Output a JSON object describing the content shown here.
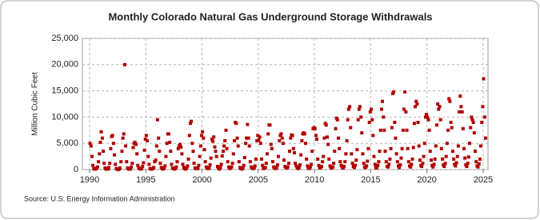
{
  "chart_data": {
    "type": "scatter",
    "title": "Monthly Colorado Natural  Gas Underground Storage Withdrawals",
    "ylabel": "Million Cubic Feet",
    "source": "Source: U.S. Energy Information Administration",
    "color": "#b00000",
    "grid": true,
    "xlim": [
      1989.36,
      2025.43
    ],
    "xticks": [
      1990,
      1995,
      2000,
      2005,
      2010,
      2015,
      2020,
      2025
    ],
    "ylim": [
      0,
      25000
    ],
    "yticks": [
      0,
      {
        "value": 5000,
        "label": "5,000"
      },
      {
        "value": 10000,
        "label": "10,000"
      },
      {
        "value": 15000,
        "label": "15,000"
      },
      {
        "value": 20000,
        "label": "20,000"
      },
      {
        "value": 25000,
        "label": "25,000"
      }
    ],
    "x": [
      1990.04,
      1990.13,
      1990.21,
      1990.29,
      1990.38,
      1990.46,
      1990.54,
      1990.63,
      1990.71,
      1990.79,
      1990.88,
      1990.96,
      1991.04,
      1991.13,
      1991.21,
      1991.29,
      1991.38,
      1991.46,
      1991.54,
      1991.63,
      1991.71,
      1991.79,
      1991.88,
      1991.96,
      1992.04,
      1992.13,
      1992.21,
      1992.29,
      1992.38,
      1992.46,
      1992.54,
      1992.63,
      1992.71,
      1992.79,
      1992.88,
      1992.96,
      1993.04,
      1993.13,
      1993.21,
      1993.29,
      1993.38,
      1993.46,
      1993.54,
      1993.63,
      1993.71,
      1993.79,
      1993.88,
      1993.96,
      1994.04,
      1994.13,
      1994.21,
      1994.29,
      1994.38,
      1994.46,
      1994.54,
      1994.63,
      1994.71,
      1994.79,
      1994.88,
      1994.96,
      1995.04,
      1995.13,
      1995.21,
      1995.29,
      1995.38,
      1995.46,
      1995.54,
      1995.63,
      1995.71,
      1995.79,
      1995.88,
      1995.96,
      1996.04,
      1996.13,
      1996.21,
      1996.29,
      1996.38,
      1996.46,
      1996.54,
      1996.63,
      1996.71,
      1996.79,
      1996.88,
      1996.96,
      1997.04,
      1997.13,
      1997.21,
      1997.29,
      1997.38,
      1997.46,
      1997.54,
      1997.63,
      1997.71,
      1997.79,
      1997.88,
      1997.96,
      1998.04,
      1998.13,
      1998.21,
      1998.29,
      1998.38,
      1998.46,
      1998.54,
      1998.63,
      1998.71,
      1998.79,
      1998.88,
      1998.96,
      1999.04,
      1999.13,
      1999.21,
      1999.29,
      1999.38,
      1999.46,
      1999.54,
      1999.63,
      1999.71,
      1999.79,
      1999.88,
      1999.96,
      2000.04,
      2000.13,
      2000.21,
      2000.29,
      2000.38,
      2000.46,
      2000.54,
      2000.63,
      2000.71,
      2000.79,
      2000.88,
      2000.96,
      2001.04,
      2001.13,
      2001.21,
      2001.29,
      2001.38,
      2001.46,
      2001.54,
      2001.63,
      2001.71,
      2001.79,
      2001.88,
      2001.96,
      2002.04,
      2002.13,
      2002.21,
      2002.29,
      2002.38,
      2002.46,
      2002.54,
      2002.63,
      2002.71,
      2002.79,
      2002.88,
      2002.96,
      2003.04,
      2003.13,
      2003.21,
      2003.29,
      2003.38,
      2003.46,
      2003.54,
      2003.63,
      2003.71,
      2003.79,
      2003.88,
      2003.96,
      2004.04,
      2004.13,
      2004.21,
      2004.29,
      2004.38,
      2004.46,
      2004.54,
      2004.63,
      2004.71,
      2004.79,
      2004.88,
      2004.96,
      2005.04,
      2005.13,
      2005.21,
      2005.29,
      2005.38,
      2005.46,
      2005.54,
      2005.63,
      2005.71,
      2005.79,
      2005.88,
      2005.96,
      2006.04,
      2006.13,
      2006.21,
      2006.29,
      2006.38,
      2006.46,
      2006.54,
      2006.63,
      2006.71,
      2006.79,
      2006.88,
      2006.96,
      2007.04,
      2007.13,
      2007.21,
      2007.29,
      2007.38,
      2007.46,
      2007.54,
      2007.63,
      2007.71,
      2007.79,
      2007.88,
      2007.96,
      2008.04,
      2008.13,
      2008.21,
      2008.29,
      2008.38,
      2008.46,
      2008.54,
      2008.63,
      2008.71,
      2008.79,
      2008.88,
      2008.96,
      2009.04,
      2009.13,
      2009.21,
      2009.29,
      2009.38,
      2009.46,
      2009.54,
      2009.63,
      2009.71,
      2009.79,
      2009.88,
      2009.96,
      2010.04,
      2010.13,
      2010.21,
      2010.29,
      2010.38,
      2010.46,
      2010.54,
      2010.63,
      2010.71,
      2010.79,
      2010.88,
      2010.96,
      2011.04,
      2011.13,
      2011.21,
      2011.29,
      2011.38,
      2011.46,
      2011.54,
      2011.63,
      2011.71,
      2011.79,
      2011.88,
      2011.96,
      2012.04,
      2012.13,
      2012.21,
      2012.29,
      2012.38,
      2012.46,
      2012.54,
      2012.63,
      2012.71,
      2012.79,
      2012.88,
      2012.96,
      2013.04,
      2013.13,
      2013.21,
      2013.29,
      2013.38,
      2013.46,
      2013.54,
      2013.63,
      2013.71,
      2013.79,
      2013.88,
      2013.96,
      2014.04,
      2014.13,
      2014.21,
      2014.29,
      2014.38,
      2014.46,
      2014.54,
      2014.63,
      2014.71,
      2014.79,
      2014.88,
      2014.96,
      2015.04,
      2015.13,
      2015.21,
      2015.29,
      2015.38,
      2015.46,
      2015.54,
      2015.63,
      2015.71,
      2015.79,
      2015.88,
      2015.96,
      2016.04,
      2016.13,
      2016.21,
      2016.29,
      2016.38,
      2016.46,
      2016.54,
      2016.63,
      2016.71,
      2016.79,
      2016.88,
      2016.96,
      2017.04,
      2017.13,
      2017.21,
      2017.29,
      2017.38,
      2017.46,
      2017.54,
      2017.63,
      2017.71,
      2017.79,
      2017.88,
      2017.96,
      2018.04,
      2018.13,
      2018.21,
      2018.29,
      2018.38,
      2018.46,
      2018.54,
      2018.63,
      2018.71,
      2018.79,
      2018.88,
      2018.96,
      2019.04,
      2019.13,
      2019.21,
      2019.29,
      2019.38,
      2019.46,
      2019.54,
      2019.63,
      2019.71,
      2019.79,
      2019.88,
      2019.96,
      2020.04,
      2020.13,
      2020.21,
      2020.29,
      2020.38,
      2020.46,
      2020.54,
      2020.63,
      2020.71,
      2020.79,
      2020.88,
      2020.96,
      2021.04,
      2021.13,
      2021.21,
      2021.29,
      2021.38,
      2021.46,
      2021.54,
      2021.63,
      2021.71,
      2021.79,
      2021.88,
      2021.96,
      2022.04,
      2022.13,
      2022.21,
      2022.29,
      2022.38,
      2022.46,
      2022.54,
      2022.63,
      2022.71,
      2022.79,
      2022.88,
      2022.96,
      2023.04,
      2023.13,
      2023.21,
      2023.29,
      2023.38,
      2023.46,
      2023.54,
      2023.63,
      2023.71,
      2023.79,
      2023.88,
      2023.96,
      2024.04,
      2024.13,
      2024.21,
      2024.29,
      2024.38,
      2024.46,
      2024.54,
      2024.63,
      2024.71,
      2024.79,
      2024.88,
      2024.96,
      2025.04,
      2025.13,
      2025.21
    ],
    "values": [
      5000,
      4500,
      2500,
      800,
      200,
      100,
      100,
      300,
      500,
      1500,
      3000,
      5200,
      7200,
      6000,
      3500,
      1200,
      300,
      100,
      200,
      100,
      400,
      1200,
      4000,
      6300,
      6500,
      5000,
      2800,
      1000,
      200,
      100,
      0,
      100,
      300,
      1500,
      3500,
      6000,
      6800,
      20000,
      4500,
      1500,
      300,
      100,
      200,
      100,
      500,
      1200,
      4200,
      5000,
      5200,
      4800,
      3000,
      800,
      300,
      200,
      100,
      200,
      600,
      1300,
      3700,
      5800,
      6500,
      5500,
      2500,
      1000,
      200,
      100,
      100,
      200,
      400,
      1500,
      1800,
      4500,
      9500,
      6000,
      3500,
      1200,
      400,
      200,
      100,
      300,
      700,
      2500,
      5000,
      6800,
      6800,
      5200,
      3500,
      1000,
      300,
      200,
      100,
      200,
      500,
      1500,
      4000,
      4500,
      4800,
      4300,
      3000,
      1000,
      400,
      200,
      100,
      300,
      700,
      2000,
      6500,
      8800,
      9200,
      5000,
      3500,
      1200,
      300,
      200,
      300,
      200,
      800,
      2500,
      4500,
      6500,
      7200,
      6000,
      3800,
      1500,
      500,
      300,
      200,
      300,
      900,
      2200,
      5800,
      5400,
      6200,
      4300,
      3500,
      2500,
      600,
      300,
      100,
      400,
      1000,
      2600,
      3500,
      4500,
      5500,
      7500,
      4000,
      1500,
      500,
      200,
      300,
      500,
      1200,
      3000,
      5500,
      9000,
      8800,
      6000,
      4500,
      1500,
      400,
      200,
      100,
      300,
      800,
      2300,
      5000,
      6000,
      8600,
      6000,
      4500,
      1500,
      500,
      300,
      200,
      300,
      700,
      2000,
      5500,
      6500,
      5600,
      6200,
      5000,
      2000,
      800,
      200,
      300,
      400,
      1200,
      3000,
      6800,
      8500,
      8500,
      4800,
      4000,
      1500,
      500,
      300,
      200,
      400,
      900,
      2500,
      5500,
      6500,
      6800,
      6000,
      5000,
      1800,
      600,
      400,
      300,
      500,
      1200,
      3500,
      6000,
      6600,
      6500,
      4000,
      3200,
      1200,
      700,
      400,
      200,
      400,
      900,
      2800,
      5500,
      6800,
      7000,
      6800,
      5000,
      2000,
      700,
      300,
      200,
      500,
      1000,
      3500,
      7800,
      8000,
      7800,
      6500,
      5800,
      2000,
      800,
      300,
      400,
      600,
      1500,
      2500,
      6000,
      8800,
      8500,
      6200,
      4800,
      2000,
      700,
      400,
      300,
      500,
      1200,
      3500,
      7800,
      9800,
      9500,
      6000,
      4000,
      1500,
      800,
      500,
      300,
      600,
      1500,
      3000,
      5500,
      9500,
      11500,
      12000,
      8000,
      3000,
      1200,
      600,
      400,
      800,
      1800,
      3800,
      9500,
      11500,
      12000,
      10000,
      7000,
      3000,
      1200,
      500,
      400,
      700,
      1600,
      4000,
      9000,
      11000,
      11500,
      9500,
      6500,
      2500,
      1000,
      400,
      300,
      800,
      1500,
      3500,
      7500,
      11500,
      13000,
      10000,
      7500,
      3500,
      1500,
      600,
      500,
      1000,
      2000,
      4000,
      8000,
      14500,
      14800,
      9000,
      6000,
      3000,
      1500,
      700,
      400,
      900,
      2200,
      4000,
      7500,
      11500,
      14800,
      11000,
      7500,
      4000,
      1500,
      700,
      500,
      1000,
      2000,
      4200,
      8800,
      12000,
      13000,
      12500,
      9000,
      4500,
      1800,
      800,
      600,
      1200,
      2500,
      5000,
      10000,
      10500,
      10000,
      9500,
      7500,
      3500,
      1800,
      800,
      500,
      1000,
      2000,
      4500,
      8500,
      12500,
      11500,
      12000,
      9500,
      4000,
      2000,
      900,
      600,
      1200,
      2500,
      5000,
      7500,
      13500,
      13000,
      9000,
      8000,
      3500,
      2000,
      1000,
      700,
      1300,
      2500,
      4500,
      11000,
      14000,
      12000,
      11000,
      7800,
      4000,
      2200,
      900,
      600,
      1200,
      2400,
      5000,
      8000,
      10000,
      9500,
      9000,
      7000,
      3500,
      1500,
      700,
      500,
      1100,
      2000,
      4500,
      9000,
      12000,
      17300,
      10000,
      6000
    ]
  }
}
